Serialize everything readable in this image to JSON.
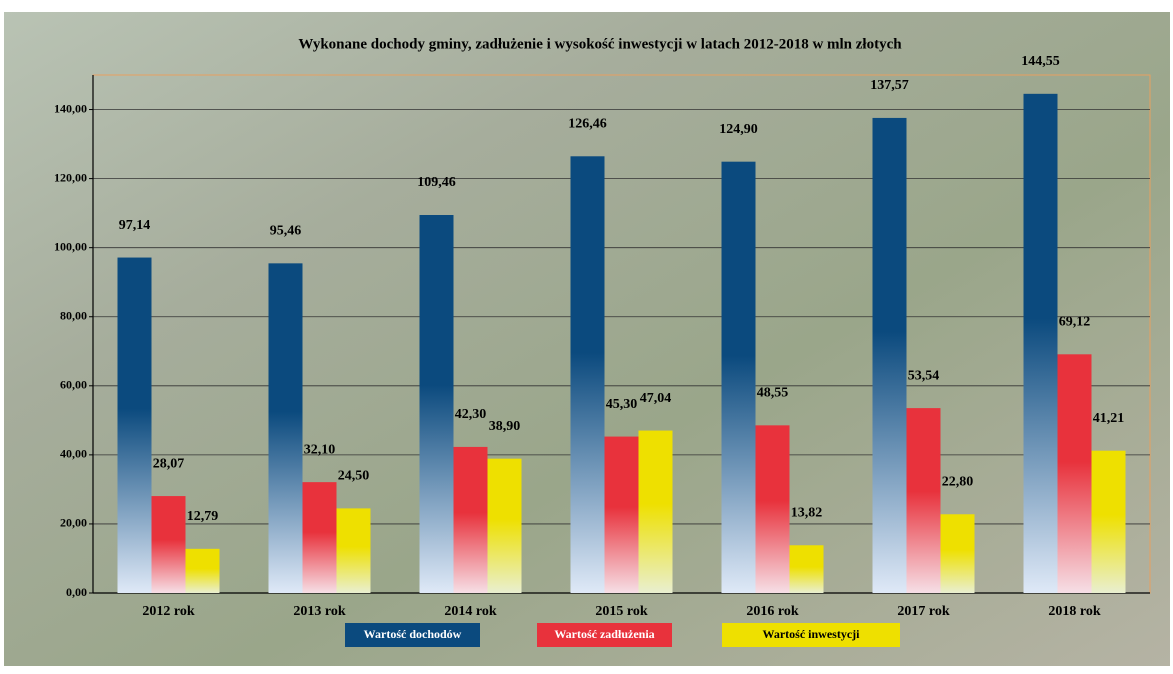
{
  "chart_data": {
    "type": "bar",
    "title": "Wykonane dochody gminy, zadłużenie i wysokość inwestycji w latach 2012-2018 w mln złotych",
    "categories": [
      "2012 rok",
      "2013 rok",
      "2014 rok",
      "2015 rok",
      "2016 rok",
      "2017 rok",
      "2018 rok"
    ],
    "series": [
      {
        "name": "Wartość dochodów",
        "color": "#0b4a7e",
        "values": [
          97.14,
          95.46,
          109.46,
          126.46,
          124.9,
          137.57,
          144.55
        ],
        "value_labels": [
          "97,14",
          "95,46",
          "109,46",
          "126,46",
          "124,90",
          "137,57",
          "144,55"
        ]
      },
      {
        "name": "Wartość zadłużenia",
        "color": "#e8323c",
        "values": [
          28.07,
          32.1,
          42.3,
          45.3,
          48.55,
          53.54,
          69.12
        ],
        "value_labels": [
          "28,07",
          "32,10",
          "42,30",
          "45,30",
          "48,55",
          "53,54",
          "69,12"
        ]
      },
      {
        "name": "Wartość inwestycji",
        "color": "#eee000",
        "values": [
          12.79,
          24.5,
          38.9,
          47.04,
          13.82,
          22.8,
          41.21
        ],
        "value_labels": [
          "12,79",
          "24,50",
          "38,90",
          "47,04",
          "13,82",
          "22,80",
          "41,21"
        ]
      }
    ],
    "ylim": [
      0,
      150
    ],
    "yticks": [
      {
        "value": 0,
        "label": "0,00"
      },
      {
        "value": 20,
        "label": "20,00"
      },
      {
        "value": 40,
        "label": "40,00"
      },
      {
        "value": 60,
        "label": "60,00"
      },
      {
        "value": 80,
        "label": "80,00"
      },
      {
        "value": 100,
        "label": "100,00"
      },
      {
        "value": 120,
        "label": "120,00"
      },
      {
        "value": 140,
        "label": "140,00"
      }
    ],
    "grid": true
  }
}
